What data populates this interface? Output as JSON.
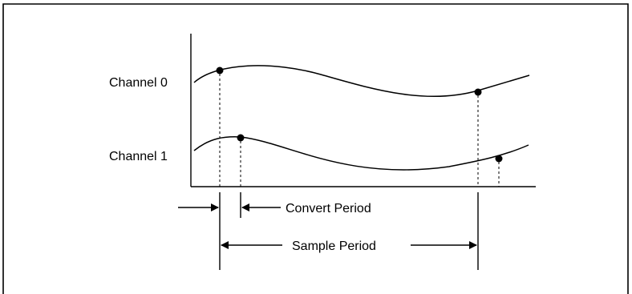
{
  "diagram": {
    "channel_labels": [
      "Channel 0",
      "Channel 1"
    ],
    "convert_period_label": "Convert Period",
    "sample_period_label": "Sample Period"
  },
  "colors": {
    "line": "#000000",
    "background": "#ffffff"
  }
}
